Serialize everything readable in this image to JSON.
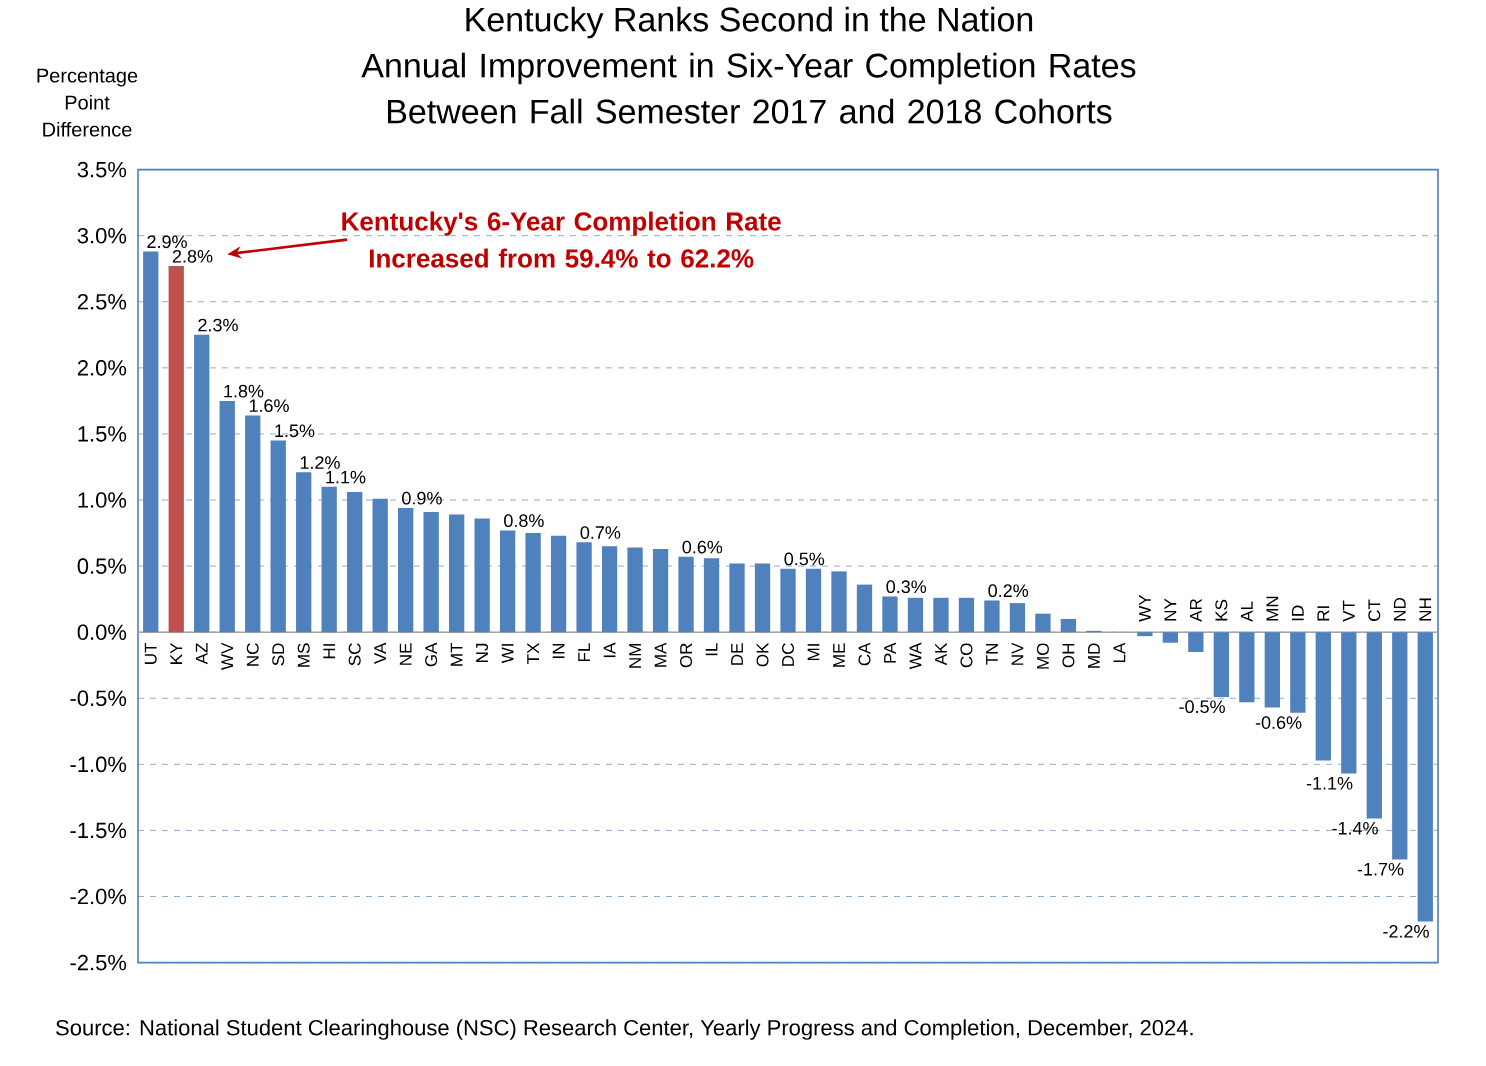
{
  "chart_data": {
    "type": "bar",
    "title": "Kentucky Ranks Second in the Nation",
    "subtitle": "Annual Improvement in Six-Year Completion Rates Between Fall Semester 2017 and 2018 Cohorts",
    "ylabel": "Percentage Point Difference",
    "categories": [
      "UT",
      "KY",
      "AZ",
      "WV",
      "NC",
      "SD",
      "MS",
      "HI",
      "SC",
      "VA",
      "NE",
      "GA",
      "MT",
      "NJ",
      "WI",
      "TX",
      "IN",
      "FL",
      "IA",
      "NM",
      "MA",
      "OR",
      "IL",
      "DE",
      "OK",
      "DC",
      "MI",
      "ME",
      "CA",
      "PA",
      "WA",
      "AK",
      "CO",
      "TN",
      "NV",
      "MO",
      "OH",
      "MD",
      "LA",
      "WY",
      "NY",
      "AR",
      "KS",
      "AL",
      "MN",
      "ID",
      "RI",
      "VT",
      "CT",
      "ND",
      "NH"
    ],
    "values": [
      2.88,
      2.77,
      2.25,
      1.75,
      1.64,
      1.45,
      1.21,
      1.1,
      1.06,
      1.01,
      0.94,
      0.91,
      0.89,
      0.86,
      0.77,
      0.75,
      0.73,
      0.68,
      0.65,
      0.64,
      0.63,
      0.57,
      0.56,
      0.52,
      0.52,
      0.48,
      0.48,
      0.46,
      0.36,
      0.27,
      0.26,
      0.26,
      0.26,
      0.24,
      0.22,
      0.14,
      0.1,
      0.01,
      0.0,
      -0.03,
      -0.08,
      -0.15,
      -0.49,
      -0.53,
      -0.57,
      -0.61,
      -0.97,
      -1.07,
      -1.41,
      -1.72,
      -2.19
    ],
    "colors": [
      "#4f81bd",
      "#c0504d",
      "#4f81bd",
      "#4f81bd",
      "#4f81bd",
      "#4f81bd",
      "#4f81bd",
      "#4f81bd",
      "#4f81bd",
      "#4f81bd",
      "#4f81bd",
      "#4f81bd",
      "#4f81bd",
      "#4f81bd",
      "#4f81bd",
      "#4f81bd",
      "#4f81bd",
      "#4f81bd",
      "#4f81bd",
      "#4f81bd",
      "#4f81bd",
      "#4f81bd",
      "#4f81bd",
      "#4f81bd",
      "#4f81bd",
      "#4f81bd",
      "#4f81bd",
      "#4f81bd",
      "#4f81bd",
      "#4f81bd",
      "#4f81bd",
      "#4f81bd",
      "#4f81bd",
      "#4f81bd",
      "#4f81bd",
      "#4f81bd",
      "#4f81bd",
      "#4f81bd",
      "#4f81bd",
      "#4f81bd",
      "#4f81bd",
      "#4f81bd",
      "#4f81bd",
      "#4f81bd",
      "#4f81bd",
      "#4f81bd",
      "#4f81bd",
      "#4f81bd",
      "#4f81bd",
      "#4f81bd",
      "#4f81bd"
    ],
    "value_labels": [
      "2.9%",
      "2.8%",
      "2.3%",
      "1.8%",
      "1.6%",
      "1.5%",
      "1.2%",
      "1.1%",
      null,
      null,
      "0.9%",
      null,
      null,
      null,
      "0.8%",
      null,
      null,
      "0.7%",
      null,
      null,
      null,
      "0.6%",
      null,
      null,
      null,
      "0.5%",
      null,
      null,
      null,
      "0.3%",
      null,
      null,
      null,
      "0.2%",
      null,
      null,
      null,
      null,
      null,
      null,
      null,
      null,
      "-0.5%",
      null,
      null,
      "-0.6%",
      null,
      "-1.1%",
      "-1.4%",
      "-1.7%",
      "-2.2%"
    ],
    "ylim": [
      -2.5,
      3.5
    ],
    "yticks": [
      {
        "value": -2.5,
        "label": "-2.5%"
      },
      {
        "value": -2.0,
        "label": "-2.0%"
      },
      {
        "value": -1.5,
        "label": "-1.5%"
      },
      {
        "value": -1.0,
        "label": "-1.0%"
      },
      {
        "value": -0.5,
        "label": "-0.5%"
      },
      {
        "value": 0,
        "label": "0.0%"
      },
      {
        "value": 0.5,
        "label": "0.5%"
      },
      {
        "value": 1.0,
        "label": "1.0%"
      },
      {
        "value": 1.5,
        "label": "1.5%"
      },
      {
        "value": 2.0,
        "label": "2.0%"
      },
      {
        "value": 2.5,
        "label": "2.5%"
      },
      {
        "value": 3.0,
        "label": "3.0%"
      },
      {
        "value": 3.5,
        "label": "3.5%"
      }
    ],
    "grid": "y",
    "annotations": [
      "Kentucky's 6-Year Completion Rate Increased from 59.4% to 62.2%",
      "Source:  National Student Clearinghouse (NSC) Research Center, Yearly Progress and Completion, December, 2024."
    ]
  }
}
